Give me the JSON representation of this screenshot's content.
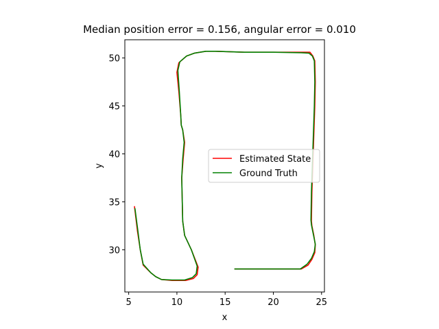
{
  "chart_data": {
    "type": "line",
    "title": "Median position error = 0.156, angular error = 0.010",
    "xlabel": "x",
    "ylabel": "y",
    "xlim": [
      4.6,
      25.3
    ],
    "ylim": [
      25.6,
      51.9
    ],
    "xticks": [
      5,
      10,
      15,
      20,
      25
    ],
    "yticks": [
      30,
      35,
      40,
      45,
      50
    ],
    "xtick_labels": [
      "5",
      "10",
      "15",
      "20",
      "25"
    ],
    "ytick_labels": [
      "30",
      "35",
      "40",
      "45",
      "50"
    ],
    "grid": false,
    "legend_position": "center-right",
    "series": [
      {
        "name": "Estimated State",
        "color": "#ff0000",
        "x": [
          16.0,
          18.0,
          20.0,
          22.0,
          22.9,
          23.6,
          24.0,
          24.3,
          24.35,
          24.2,
          24.0,
          23.95,
          24.0,
          24.1,
          24.2,
          24.3,
          24.35,
          24.3,
          24.1,
          23.8,
          23.0,
          20.0,
          17.0,
          14.0,
          13.0,
          11.8,
          11.0,
          10.2,
          10.0,
          10.2,
          10.4,
          10.45,
          10.6,
          10.8,
          10.65,
          10.5,
          10.6,
          10.8,
          11.5,
          12.2,
          12.1,
          11.7,
          10.9,
          9.5,
          8.4,
          7.8,
          7.3,
          6.5,
          6.2,
          5.9,
          5.6
        ],
        "y": [
          28.0,
          28.0,
          28.0,
          28.0,
          28.0,
          28.4,
          29.0,
          29.7,
          30.5,
          31.5,
          32.5,
          33.0,
          36.0,
          39.0,
          42.0,
          45.0,
          47.5,
          49.7,
          50.2,
          50.6,
          50.6,
          50.6,
          50.6,
          50.7,
          50.7,
          50.5,
          50.2,
          49.5,
          48.5,
          46.5,
          44.0,
          43.0,
          42.5,
          41.2,
          39.5,
          37.5,
          33.0,
          31.5,
          30.0,
          28.2,
          27.4,
          27.0,
          26.8,
          26.8,
          26.9,
          27.2,
          27.6,
          28.4,
          30.0,
          32.0,
          34.5
        ]
      },
      {
        "name": "Ground Truth",
        "color": "#008000",
        "x": [
          16.0,
          18.0,
          20.0,
          22.0,
          22.8,
          23.5,
          23.95,
          24.25,
          24.35,
          24.15,
          23.95,
          23.9,
          23.95,
          24.05,
          24.15,
          24.25,
          24.3,
          24.25,
          24.05,
          23.7,
          22.9,
          20.0,
          17.0,
          14.0,
          13.0,
          11.8,
          11.0,
          10.3,
          10.1,
          10.25,
          10.4,
          10.45,
          10.6,
          10.75,
          10.6,
          10.5,
          10.6,
          10.8,
          11.5,
          12.1,
          12.0,
          11.6,
          10.8,
          9.5,
          8.4,
          7.8,
          7.3,
          6.5,
          6.2,
          5.95,
          5.65
        ],
        "y": [
          28.0,
          28.0,
          28.0,
          28.0,
          28.0,
          28.5,
          29.1,
          29.8,
          30.6,
          31.6,
          32.6,
          33.1,
          36.0,
          39.0,
          42.0,
          45.0,
          47.5,
          49.7,
          50.2,
          50.5,
          50.55,
          50.6,
          50.6,
          50.7,
          50.7,
          50.5,
          50.2,
          49.6,
          48.7,
          46.5,
          44.0,
          43.0,
          42.5,
          41.2,
          39.5,
          37.5,
          33.0,
          31.5,
          30.0,
          28.3,
          27.5,
          27.1,
          26.85,
          26.85,
          26.9,
          27.2,
          27.6,
          28.5,
          30.0,
          32.0,
          34.3
        ]
      }
    ]
  }
}
